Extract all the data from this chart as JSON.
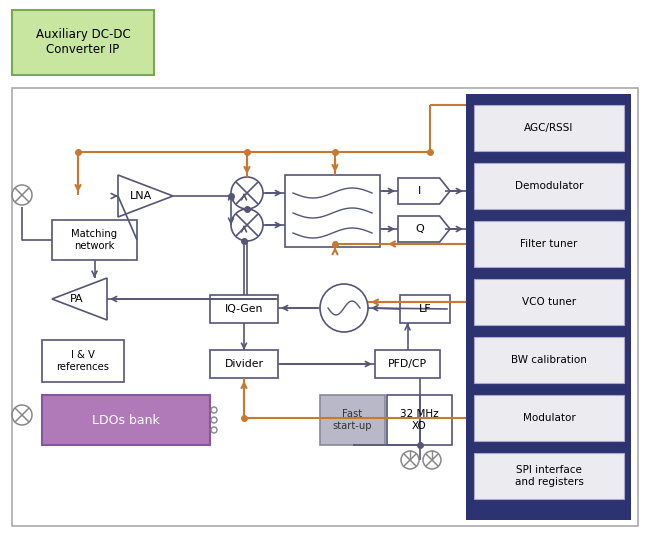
{
  "bg_color": "#ffffff",
  "orange": "#c87830",
  "navy": "#2d3270",
  "green_fill": "#c8e6a0",
  "green_border": "#7aaa50",
  "purple_fill": "#b07ab8",
  "purple_border": "#8855a0",
  "gray_fill": "#b8b8c8",
  "gray_border": "#888898",
  "light_gray": "#ebebf0",
  "block_border": "#555577",
  "line_color": "#555577",
  "aux_text": "Auxiliary DC-DC\nConverter IP",
  "right_panel_labels": [
    "AGC/RSSI",
    "Demodulator",
    "Filter tuner",
    "VCO tuner",
    "BW calibration",
    "Modulator",
    "SPI interface\nand registers"
  ]
}
